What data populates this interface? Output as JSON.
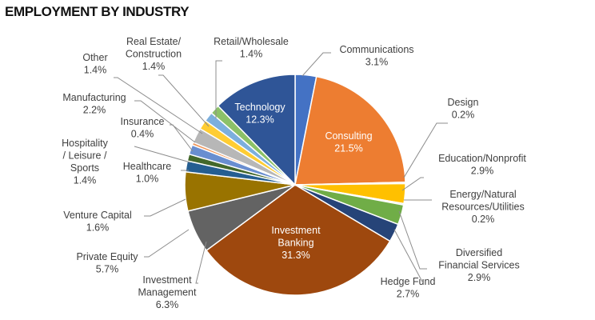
{
  "chart_data": {
    "type": "pie",
    "title": "EMPLOYMENT BY INDUSTRY",
    "start_angle_deg": 0,
    "slices": [
      {
        "name": "Communications",
        "value": 3.1,
        "color": "#4472c4"
      },
      {
        "name": "Consulting",
        "value": 21.5,
        "color": "#ed7d31"
      },
      {
        "name": "Design",
        "value": 0.2,
        "color": "#a5a5a5"
      },
      {
        "name": "Education/Nonprofit",
        "value": 2.9,
        "color": "#ffc000"
      },
      {
        "name": "Energy/Natural Resources/Utilities",
        "value": 0.2,
        "color": "#5b9bd5"
      },
      {
        "name": "Diversified Financial Services",
        "value": 2.9,
        "color": "#70ad47"
      },
      {
        "name": "Hedge Fund",
        "value": 2.7,
        "color": "#264478"
      },
      {
        "name": "Investment Banking",
        "value": 31.3,
        "color": "#9e480e"
      },
      {
        "name": "Investment Management",
        "value": 6.3,
        "color": "#636363"
      },
      {
        "name": "Private Equity",
        "value": 5.7,
        "color": "#997300"
      },
      {
        "name": "Venture Capital",
        "value": 1.6,
        "color": "#255e91"
      },
      {
        "name": "Healthcare",
        "value": 1.0,
        "color": "#43682b"
      },
      {
        "name": "Hospitality / Leisure / Sports",
        "value": 1.4,
        "color": "#698ed0"
      },
      {
        "name": "Insurance",
        "value": 0.4,
        "color": "#f1975a"
      },
      {
        "name": "Manufacturing",
        "value": 2.2,
        "color": "#b7b7b7"
      },
      {
        "name": "Other",
        "value": 1.4,
        "color": "#ffcd33"
      },
      {
        "name": "Real Estate/ Construction",
        "value": 1.4,
        "color": "#7cafdd"
      },
      {
        "name": "Retail/Wholesale",
        "value": 1.4,
        "color": "#8cc168"
      },
      {
        "name": "Technology",
        "value": 12.3,
        "color": "#2f5597"
      }
    ],
    "labels": [
      {
        "lines": [
          "Communications",
          "3.1%"
        ],
        "inside": false
      },
      {
        "lines": [
          "Consulting",
          "21.5%"
        ],
        "inside": true
      },
      {
        "lines": [
          "Design",
          "0.2%"
        ],
        "inside": false
      },
      {
        "lines": [
          "Education/Nonprofit",
          "2.9%"
        ],
        "inside": false
      },
      {
        "lines": [
          "Energy/Natural",
          "Resources/Utilities",
          "0.2%"
        ],
        "inside": false
      },
      {
        "lines": [
          "Diversified",
          "Financial Services",
          "2.9%"
        ],
        "inside": false
      },
      {
        "lines": [
          "Hedge Fund",
          "2.7%"
        ],
        "inside": false
      },
      {
        "lines": [
          "Investment",
          "Banking",
          "31.3%"
        ],
        "inside": true
      },
      {
        "lines": [
          "Investment",
          "Management",
          "6.3%"
        ],
        "inside": false
      },
      {
        "lines": [
          "Private Equity",
          "5.7%"
        ],
        "inside": false
      },
      {
        "lines": [
          "Venture Capital",
          "1.6%"
        ],
        "inside": false
      },
      {
        "lines": [
          "Healthcare",
          "1.0%"
        ],
        "inside": false
      },
      {
        "lines": [
          "Hospitality",
          "/ Leisure /",
          "Sports",
          "1.4%"
        ],
        "inside": false
      },
      {
        "lines": [
          "Insurance",
          "0.4%"
        ],
        "inside": false
      },
      {
        "lines": [
          "Manufacturing",
          "2.2%"
        ],
        "inside": false
      },
      {
        "lines": [
          "Other",
          "1.4%"
        ],
        "inside": false
      },
      {
        "lines": [
          "Real Estate/",
          "Construction",
          "1.4%"
        ],
        "inside": false
      },
      {
        "lines": [
          "Retail/Wholesale",
          "1.4%"
        ],
        "inside": false
      },
      {
        "lines": [
          "Technology",
          "12.3%"
        ],
        "inside": true
      }
    ],
    "legend": "none"
  }
}
